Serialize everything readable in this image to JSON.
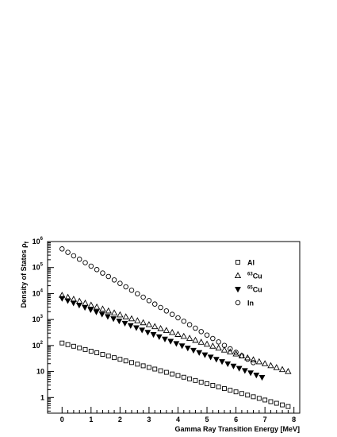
{
  "chart_data": {
    "type": "scatter",
    "xlabel": "Gamma Ray Transition Energy [MeV]",
    "ylabel": "Density of States ρ",
    "ylabel_sub": "f",
    "xlim": [
      -0.5,
      8.2
    ],
    "ylim": [
      0.25,
      1000000
    ],
    "yscale": "log",
    "grid": false,
    "legend_position": "top-right",
    "x_ticks": [
      "0",
      "1",
      "2",
      "3",
      "4",
      "5",
      "6",
      "7",
      "8"
    ],
    "y_ticks": [
      {
        "value": 1,
        "base": "1",
        "exp": ""
      },
      {
        "value": 10,
        "base": "10",
        "exp": ""
      },
      {
        "value": 100,
        "base": "10",
        "exp": "2"
      },
      {
        "value": 1000,
        "base": "10",
        "exp": "3"
      },
      {
        "value": 10000,
        "base": "10",
        "exp": "4"
      },
      {
        "value": 100000,
        "base": "10",
        "exp": "5"
      },
      {
        "value": 1000000,
        "base": "10",
        "exp": "6"
      }
    ],
    "series": [
      {
        "name": "Al",
        "name_sup": "",
        "marker": "square-open",
        "x_start": 0.0,
        "x_end": 7.8,
        "y_start": 125,
        "y_end": 0.45,
        "n": 40
      },
      {
        "name": "Cu",
        "name_sup": "63",
        "marker": "triangle-up-open",
        "x_start": 0.0,
        "x_end": 7.8,
        "y_start": 8500,
        "y_end": 10,
        "n": 40
      },
      {
        "name": "Cu",
        "name_sup": "65",
        "marker": "triangle-down-filled",
        "x_start": 0.0,
        "x_end": 6.9,
        "y_start": 6500,
        "y_end": 6,
        "n": 36
      },
      {
        "name": "In",
        "name_sup": "",
        "marker": "circle-open",
        "x_start": 0.0,
        "x_end": 6.6,
        "y_start": 520000,
        "y_end": 22,
        "n": 34
      }
    ]
  }
}
